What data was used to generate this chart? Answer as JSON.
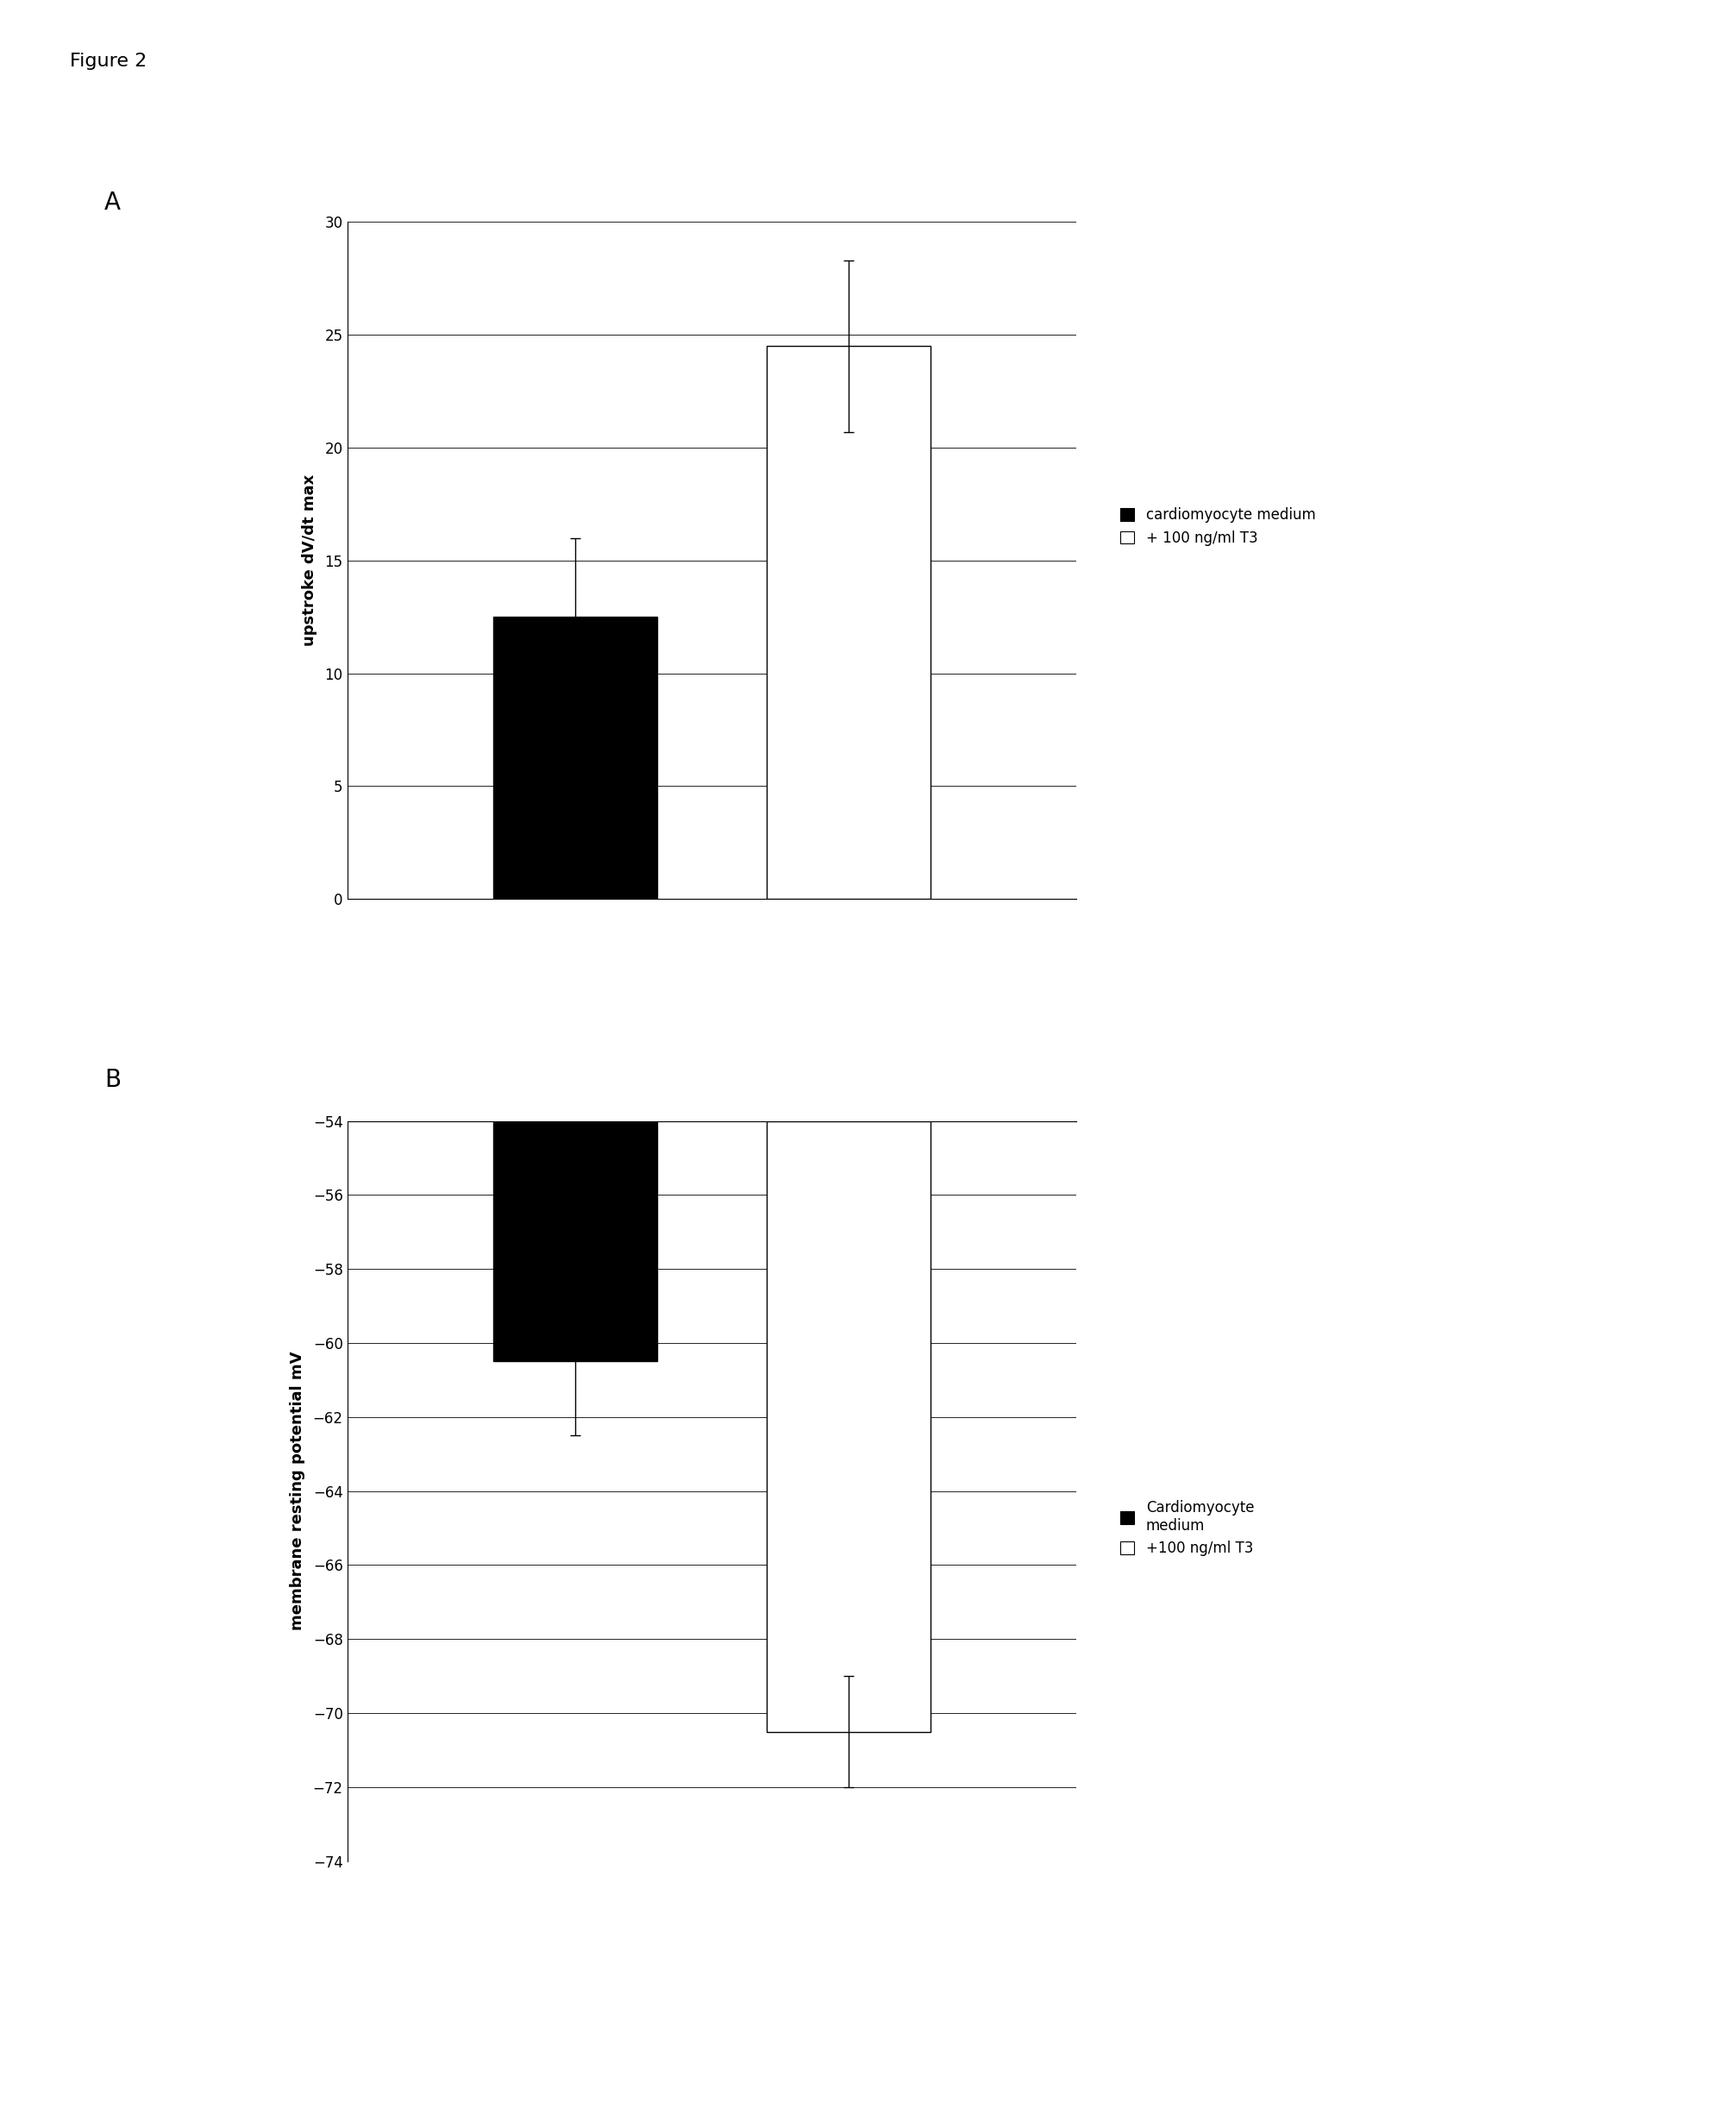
{
  "fig_title": "Figure 2",
  "panel_A": {
    "label": "A",
    "values": [
      12.5,
      24.5
    ],
    "errors": [
      3.5,
      3.8
    ],
    "colors": [
      "#000000",
      "#ffffff"
    ],
    "edgecolors": [
      "#000000",
      "#000000"
    ],
    "ylabel": "upstroke dV/dt max",
    "ylim": [
      0,
      30
    ],
    "yticks": [
      0,
      5,
      10,
      15,
      20,
      25,
      30
    ],
    "legend_labels": [
      "cardiomyocyte medium",
      "+ 100 ng/ml T3"
    ],
    "legend_colors": [
      "#000000",
      "#ffffff"
    ],
    "bar_width": 0.18,
    "bar_positions": [
      0.35,
      0.65
    ]
  },
  "panel_B": {
    "label": "B",
    "values": [
      -60.5,
      -70.5
    ],
    "errors": [
      2.0,
      1.5
    ],
    "colors": [
      "#000000",
      "#ffffff"
    ],
    "edgecolors": [
      "#000000",
      "#000000"
    ],
    "ylabel": "membrane resting potential mV",
    "ylim": [
      -74,
      -54
    ],
    "yticks": [
      -74,
      -72,
      -70,
      -68,
      -66,
      -64,
      -62,
      -60,
      -58,
      -56,
      -54
    ],
    "legend_labels": [
      "Cardiomyocyte\nmedium",
      "+100 ng/ml T3"
    ],
    "legend_colors": [
      "#000000",
      "#ffffff"
    ],
    "bar_width": 0.18,
    "bar_positions": [
      0.35,
      0.65
    ],
    "baseline": -54
  },
  "background_color": "#ffffff",
  "figure_label_fontsize": 16,
  "panel_label_fontsize": 20,
  "axis_label_fontsize": 13,
  "tick_fontsize": 12,
  "legend_fontsize": 12
}
